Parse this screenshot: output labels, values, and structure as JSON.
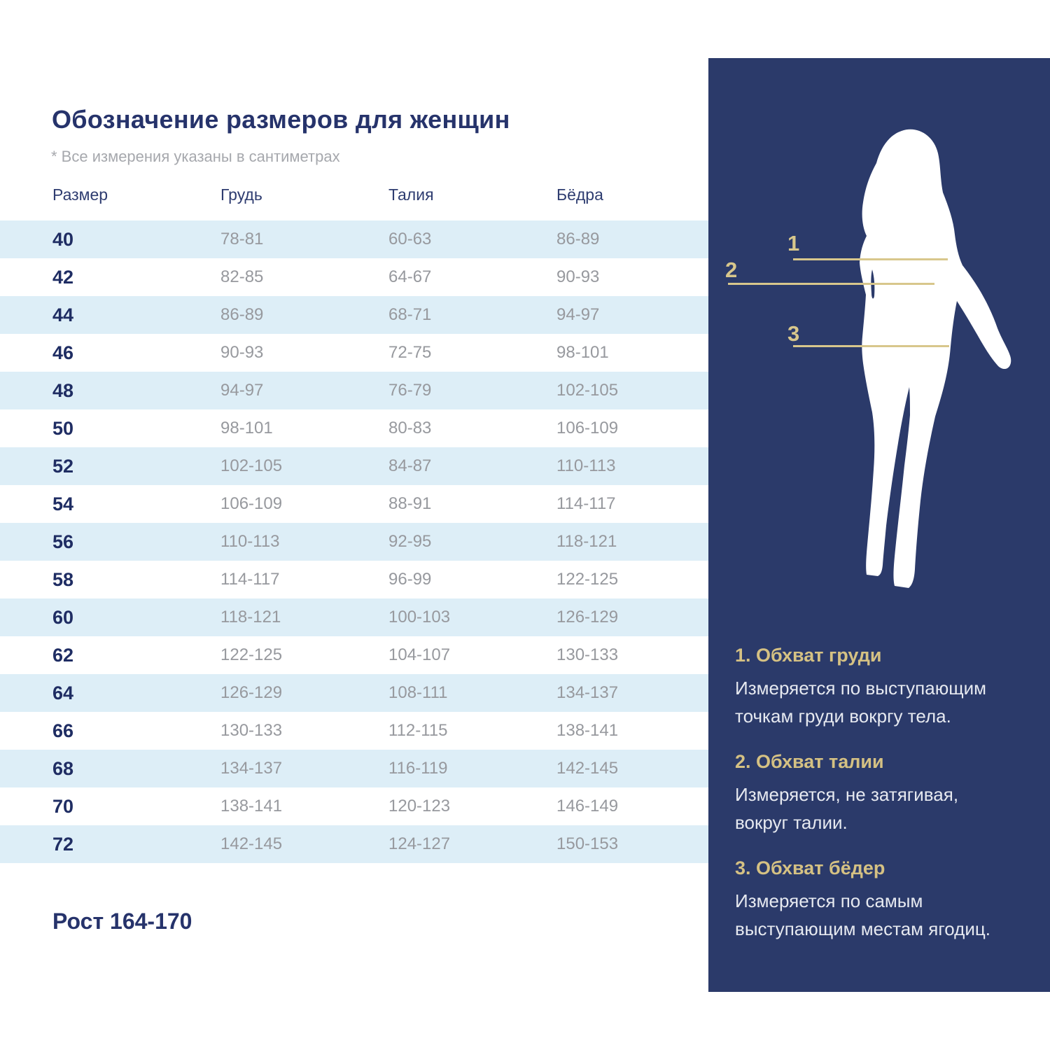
{
  "page": {
    "title": "Обозначение размеров для женщин",
    "subtitle": "* Все измерения указаны в сантиметрах",
    "height_note": "Рост 164-170"
  },
  "table": {
    "headers": [
      "Размер",
      "Грудь",
      "Талия",
      "Бёдра"
    ],
    "rows": [
      [
        "40",
        "78-81",
        "60-63",
        "86-89"
      ],
      [
        "42",
        "82-85",
        "64-67",
        "90-93"
      ],
      [
        "44",
        "86-89",
        "68-71",
        "94-97"
      ],
      [
        "46",
        "90-93",
        "72-75",
        "98-101"
      ],
      [
        "48",
        "94-97",
        "76-79",
        "102-105"
      ],
      [
        "50",
        "98-101",
        "80-83",
        "106-109"
      ],
      [
        "52",
        "102-105",
        "84-87",
        "110-113"
      ],
      [
        "54",
        "106-109",
        "88-91",
        "114-117"
      ],
      [
        "56",
        "110-113",
        "92-95",
        "118-121"
      ],
      [
        "58",
        "114-117",
        "96-99",
        "122-125"
      ],
      [
        "60",
        "118-121",
        "100-103",
        "126-129"
      ],
      [
        "62",
        "122-125",
        "104-107",
        "130-133"
      ],
      [
        "64",
        "126-129",
        "108-111",
        "134-137"
      ],
      [
        "66",
        "130-133",
        "112-115",
        "138-141"
      ],
      [
        "68",
        "134-137",
        "116-119",
        "142-145"
      ],
      [
        "70",
        "138-141",
        "120-123",
        "146-149"
      ],
      [
        "72",
        "142-145",
        "124-127",
        "150-153"
      ]
    ]
  },
  "panel": {
    "markers": {
      "m1": "1",
      "m2": "2",
      "m3": "3"
    },
    "sections": [
      {
        "title": "1. Обхват груди",
        "text": "Измеряется по  выступающим\nточкам груди вокргу тела."
      },
      {
        "title": "2. Обхват талии",
        "text": "Измеряется, не затягивая,\nвокруг талии."
      },
      {
        "title": "3. Обхват бёдер",
        "text": "Измеряется по самым\nвыступающим местам ягодиц."
      }
    ]
  },
  "colors": {
    "panel_navy": "#2b3a6a",
    "gold": "#d8c78c",
    "gold_text": "#d5c183",
    "title_navy": "#26336b",
    "size_navy": "#1f2d63",
    "value_gray": "#97999e",
    "stripe_blue": "#ddeef7",
    "panel_body_text": "#e6e9f0"
  }
}
